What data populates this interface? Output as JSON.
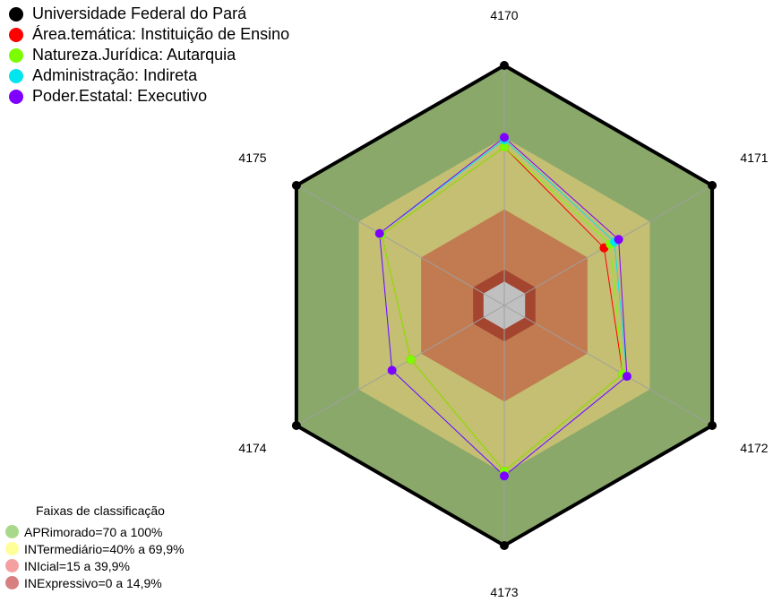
{
  "legend": [
    {
      "name": "Universidade Federal do Pará",
      "color": "#000000"
    },
    {
      "name": "Área.temática: Instituição de Ensino",
      "color": "#ff0000"
    },
    {
      "name": "Natureza.Jurídica: Autarquia",
      "color": "#7cfc00"
    },
    {
      "name": "Administração: Indireta",
      "color": "#00e5ee"
    },
    {
      "name": "Poder.Estatal: Executivo",
      "color": "#7f00ff"
    }
  ],
  "bands": {
    "title": "Faixas de classificação",
    "items": [
      {
        "label": "APRimorado=70 a 100%",
        "swatch": "#a8d88a",
        "fill": "#89a86a"
      },
      {
        "label": "INTermediário=40% a 69,9%",
        "swatch": "#ffff99",
        "fill": "#c4bf72"
      },
      {
        "label": "INIcial=15 a 39,9%",
        "swatch": "#f4a0a0",
        "fill": "#c27a50"
      },
      {
        "label": "INExpressivo=0 a 14,9%",
        "swatch": "#d88080",
        "fill": "#a44530"
      }
    ],
    "center_fill": "#c0c0c0"
  },
  "chart_data": {
    "type": "radar",
    "axes": [
      "4170",
      "4171",
      "4172",
      "4173",
      "4174",
      "4175"
    ],
    "range": [
      0,
      100
    ],
    "band_levels": [
      15,
      40,
      70,
      100
    ],
    "series": [
      {
        "name": "Universidade Federal do Pará",
        "color": "#000000",
        "values": [
          100,
          100,
          100,
          100,
          100,
          100
        ]
      },
      {
        "name": "Área.temática: Instituição de Ensino",
        "color": "#ff0000",
        "values": [
          66,
          48,
          57,
          69,
          45,
          59
        ]
      },
      {
        "name": "Natureza.Jurídica: Autarquia",
        "color": "#7cfc00",
        "values": [
          66,
          51,
          57,
          69,
          45,
          59
        ]
      },
      {
        "name": "Administração: Indireta",
        "color": "#00e5ee",
        "values": [
          69,
          53,
          59,
          71,
          54,
          60
        ]
      },
      {
        "name": "Poder.Estatal: Executivo",
        "color": "#7f00ff",
        "values": [
          70,
          55,
          59,
          71,
          54,
          60
        ]
      }
    ]
  }
}
